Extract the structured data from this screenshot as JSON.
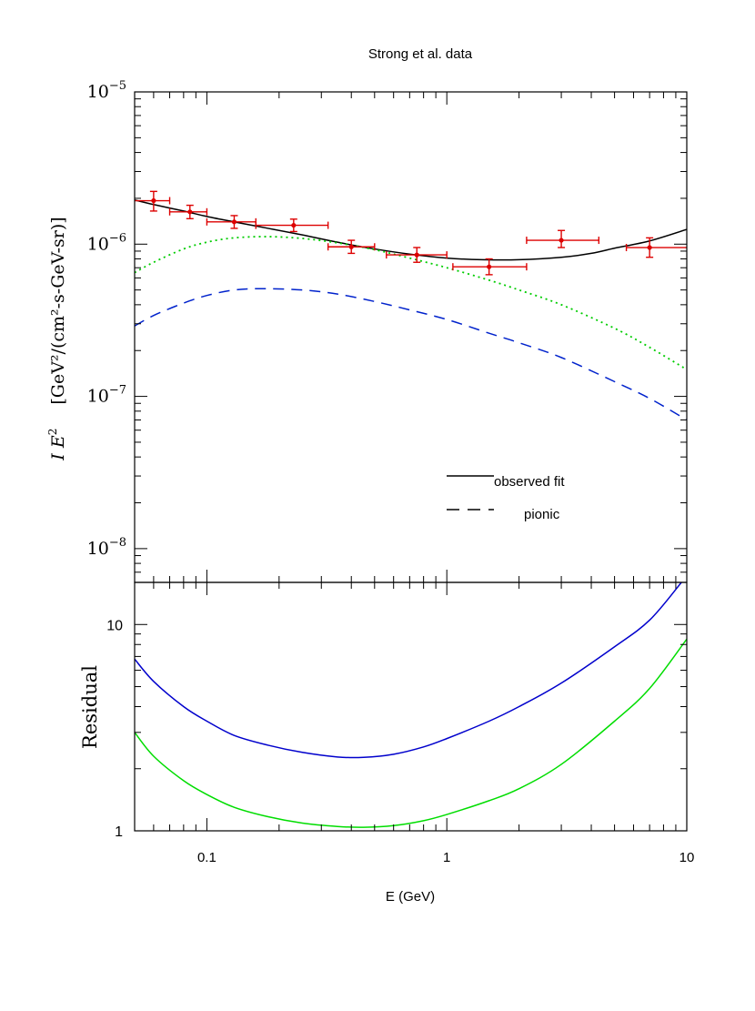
{
  "title": "Strong et al. data",
  "chart_data": [
    {
      "type": "line",
      "panel": "top",
      "xscale": "log",
      "yscale": "log",
      "xlim": [
        0.05,
        10
      ],
      "ylim": [
        6e-09,
        1e-05
      ],
      "ylabel_main": "I E",
      "ylabel_sup": "2",
      "ylabel_units": "[GeV²/(cm²-s-GeV-sr)]",
      "yticks": [
        {
          "value": 1e-05,
          "mant": "10",
          "exp": "−5"
        },
        {
          "value": 1e-06,
          "mant": "10",
          "exp": "−6"
        },
        {
          "value": 1e-07,
          "mant": "10",
          "exp": "−7"
        },
        {
          "value": 1e-08,
          "mant": "10",
          "exp": "−8"
        }
      ],
      "legend": {
        "placement": "lower-right",
        "entries": [
          {
            "label": "observed fit",
            "style": "solid",
            "color": "#000000"
          },
          {
            "label": "pionic",
            "style": "dashed",
            "color": "#000000"
          }
        ]
      },
      "series": [
        {
          "style": "solid",
          "color": "#000000",
          "x": [
            0.05,
            0.06,
            0.08,
            0.1,
            0.13,
            0.18,
            0.25,
            0.35,
            0.5,
            0.7,
            1.0,
            1.4,
            2.0,
            3.0,
            4.0,
            5.0,
            7.0,
            10.0
          ],
          "y": [
            1.95e-06,
            1.82e-06,
            1.65e-06,
            1.52e-06,
            1.4e-06,
            1.27e-06,
            1.15e-06,
            1.03e-06,
            9.3e-07,
            8.6e-07,
            8.1e-07,
            7.9e-07,
            7.9e-07,
            8.2e-07,
            8.7e-07,
            9.4e-07,
            1.05e-06,
            1.25e-06
          ]
        },
        {
          "style": "dotted",
          "color": "#00cc00",
          "x": [
            0.05,
            0.06,
            0.08,
            0.1,
            0.13,
            0.18,
            0.25,
            0.35,
            0.5,
            0.7,
            1.0,
            1.5,
            2.0,
            3.0,
            5.0,
            7.0,
            10.0
          ],
          "y": [
            6.5e-07,
            7.6e-07,
            9.3e-07,
            1.03e-06,
            1.1e-06,
            1.12e-06,
            1.09e-06,
            1.02e-06,
            9.2e-07,
            8.1e-07,
            7e-07,
            5.8e-07,
            5e-07,
            4e-07,
            2.8e-07,
            2.1e-07,
            1.5e-07
          ]
        },
        {
          "style": "dashed",
          "color": "#0022cc",
          "x": [
            0.05,
            0.06,
            0.08,
            0.1,
            0.13,
            0.17,
            0.25,
            0.35,
            0.5,
            0.7,
            1.0,
            1.5,
            2.0,
            3.0,
            5.0,
            7.0,
            10.0
          ],
          "y": [
            2.9e-07,
            3.4e-07,
            4.1e-07,
            4.6e-07,
            5e-07,
            5.1e-07,
            5e-07,
            4.7e-07,
            4.2e-07,
            3.7e-07,
            3.2e-07,
            2.6e-07,
            2.25e-07,
            1.8e-07,
            1.25e-07,
            9.7e-08,
            7e-08
          ]
        }
      ],
      "points": {
        "color": "#dd0000",
        "x": [
          0.06,
          0.085,
          0.13,
          0.23,
          0.4,
          0.75,
          1.5,
          3.0,
          7.0
        ],
        "xlo": [
          0.05,
          0.07,
          0.1,
          0.16,
          0.32,
          0.56,
          1.06,
          2.15,
          5.6
        ],
        "xhi": [
          0.07,
          0.1,
          0.16,
          0.32,
          0.5,
          1.0,
          2.15,
          4.3,
          10.0
        ],
        "y": [
          1.93e-06,
          1.63e-06,
          1.4e-06,
          1.33e-06,
          9.6e-07,
          8.5e-07,
          7.1e-07,
          1.06e-06,
          9.5e-07
        ],
        "ylo": [
          1.65e-06,
          1.47e-06,
          1.27e-06,
          1.21e-06,
          8.7e-07,
          7.6e-07,
          6.3e-07,
          9.5e-07,
          8.2e-07
        ],
        "yhi": [
          2.22e-06,
          1.8e-06,
          1.54e-06,
          1.46e-06,
          1.06e-06,
          9.5e-07,
          8e-07,
          1.23e-06,
          1.1e-06
        ]
      }
    },
    {
      "type": "line",
      "panel": "bottom",
      "xscale": "log",
      "yscale": "log",
      "xlim": [
        0.05,
        10
      ],
      "ylim": [
        1,
        16
      ],
      "ylabel": "Residual",
      "xlabel": "E (GeV)",
      "xticks": [
        {
          "value": 0.1,
          "label": "0.1"
        },
        {
          "value": 1,
          "label": "1"
        },
        {
          "value": 10,
          "label": "10"
        }
      ],
      "yticks": [
        {
          "value": 1,
          "label": "1"
        },
        {
          "value": 10,
          "label": "10"
        }
      ],
      "series": [
        {
          "style": "solid",
          "color": "#0000cc",
          "x": [
            0.05,
            0.06,
            0.08,
            0.1,
            0.13,
            0.18,
            0.25,
            0.35,
            0.45,
            0.6,
            0.8,
            1.0,
            1.5,
            2.0,
            3.0,
            5.0,
            7.0,
            9.5
          ],
          "y": [
            6.8,
            5.3,
            4.0,
            3.4,
            2.9,
            2.6,
            2.4,
            2.28,
            2.27,
            2.35,
            2.55,
            2.8,
            3.4,
            4.0,
            5.2,
            7.8,
            10.5,
            16.0
          ]
        },
        {
          "style": "solid",
          "color": "#00dd00",
          "x": [
            0.05,
            0.06,
            0.08,
            0.1,
            0.13,
            0.18,
            0.25,
            0.35,
            0.45,
            0.6,
            0.8,
            1.0,
            1.5,
            2.0,
            3.0,
            5.0,
            7.0,
            10.0
          ],
          "y": [
            3.0,
            2.3,
            1.75,
            1.5,
            1.3,
            1.17,
            1.09,
            1.05,
            1.04,
            1.06,
            1.12,
            1.2,
            1.4,
            1.6,
            2.1,
            3.4,
            4.9,
            8.5
          ]
        }
      ]
    }
  ]
}
